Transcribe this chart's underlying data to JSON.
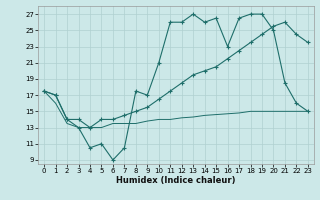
{
  "xlabel": "Humidex (Indice chaleur)",
  "bg_color": "#cce8e8",
  "line_color": "#1e6e6a",
  "grid_color": "#b0d0d0",
  "xlim": [
    -0.5,
    23.5
  ],
  "ylim": [
    8.5,
    28.0
  ],
  "yticks": [
    9,
    11,
    13,
    15,
    17,
    19,
    21,
    23,
    25,
    27
  ],
  "xticks": [
    0,
    1,
    2,
    3,
    4,
    5,
    6,
    7,
    8,
    9,
    10,
    11,
    12,
    13,
    14,
    15,
    16,
    17,
    18,
    19,
    20,
    21,
    22,
    23
  ],
  "line1_y": [
    17.5,
    17.0,
    14.0,
    13.0,
    10.5,
    11.0,
    9.0,
    10.5,
    17.5,
    17.0,
    21.0,
    26.0,
    26.0,
    27.0,
    26.0,
    26.5,
    23.0,
    26.5,
    27.0,
    27.0,
    25.0,
    18.5,
    16.0,
    15.0
  ],
  "line2_y": [
    17.5,
    17.0,
    14.0,
    14.0,
    13.0,
    14.0,
    14.0,
    14.5,
    15.0,
    15.5,
    16.5,
    17.5,
    18.5,
    19.5,
    20.0,
    20.5,
    21.5,
    22.5,
    23.5,
    24.5,
    25.5,
    26.0,
    24.5,
    23.5
  ],
  "line3_y": [
    17.5,
    16.0,
    13.5,
    13.0,
    13.0,
    13.0,
    13.5,
    13.5,
    13.5,
    13.8,
    14.0,
    14.0,
    14.2,
    14.3,
    14.5,
    14.6,
    14.7,
    14.8,
    15.0,
    15.0,
    15.0,
    15.0,
    15.0,
    15.0
  ]
}
